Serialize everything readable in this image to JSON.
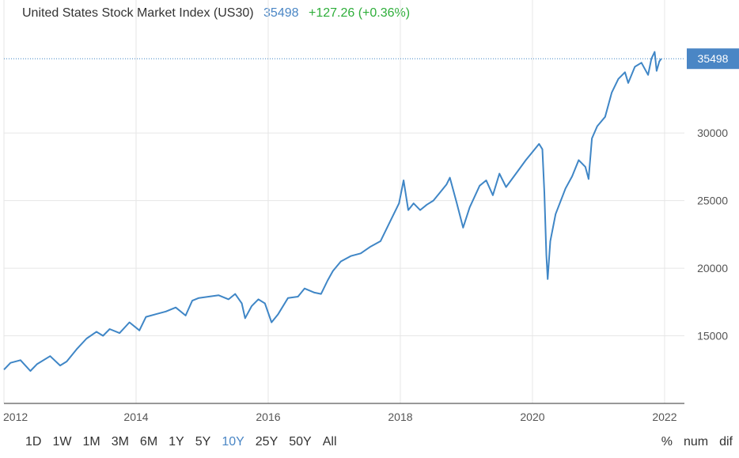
{
  "header": {
    "title": "United States Stock Market Index (US30)",
    "price": "35498",
    "change": "+127.26 (+0.36%)"
  },
  "colors": {
    "line": "#3f86c6",
    "grid": "#e6e6e6",
    "accent": "#4a86c5",
    "positive": "#2eae3a"
  },
  "chart_data": {
    "type": "line",
    "title": "United States Stock Market Index (US30)",
    "xlabel": "",
    "ylabel": "",
    "xlim": [
      2012,
      2022.3
    ],
    "ylim": [
      10000,
      37500
    ],
    "x_ticks": [
      "2012",
      "2014",
      "2016",
      "2018",
      "2020",
      "2022"
    ],
    "y_ticks": [
      "15000",
      "20000",
      "25000",
      "30000"
    ],
    "y_axis_side": "right",
    "grid": true,
    "last_value_label": "35498",
    "series": [
      {
        "points": [
          [
            2012.0,
            12500
          ],
          [
            2012.1,
            13000
          ],
          [
            2012.25,
            13200
          ],
          [
            2012.4,
            12400
          ],
          [
            2012.5,
            12900
          ],
          [
            2012.7,
            13500
          ],
          [
            2012.85,
            12800
          ],
          [
            2012.95,
            13100
          ],
          [
            2013.1,
            14000
          ],
          [
            2013.25,
            14800
          ],
          [
            2013.4,
            15300
          ],
          [
            2013.5,
            15000
          ],
          [
            2013.6,
            15500
          ],
          [
            2013.75,
            15200
          ],
          [
            2013.9,
            16000
          ],
          [
            2014.05,
            15400
          ],
          [
            2014.15,
            16400
          ],
          [
            2014.3,
            16600
          ],
          [
            2014.45,
            16800
          ],
          [
            2014.6,
            17100
          ],
          [
            2014.75,
            16500
          ],
          [
            2014.85,
            17600
          ],
          [
            2014.95,
            17800
          ],
          [
            2015.1,
            17900
          ],
          [
            2015.25,
            18000
          ],
          [
            2015.4,
            17700
          ],
          [
            2015.5,
            18100
          ],
          [
            2015.6,
            17400
          ],
          [
            2015.65,
            16300
          ],
          [
            2015.75,
            17200
          ],
          [
            2015.85,
            17700
          ],
          [
            2015.95,
            17400
          ],
          [
            2016.05,
            16000
          ],
          [
            2016.15,
            16600
          ],
          [
            2016.3,
            17800
          ],
          [
            2016.45,
            17900
          ],
          [
            2016.55,
            18500
          ],
          [
            2016.7,
            18200
          ],
          [
            2016.8,
            18100
          ],
          [
            2016.9,
            19100
          ],
          [
            2016.98,
            19800
          ],
          [
            2017.1,
            20500
          ],
          [
            2017.25,
            20900
          ],
          [
            2017.4,
            21100
          ],
          [
            2017.55,
            21600
          ],
          [
            2017.7,
            22000
          ],
          [
            2017.85,
            23500
          ],
          [
            2017.98,
            24800
          ],
          [
            2018.05,
            26500
          ],
          [
            2018.12,
            24300
          ],
          [
            2018.2,
            24800
          ],
          [
            2018.3,
            24300
          ],
          [
            2018.4,
            24700
          ],
          [
            2018.5,
            25000
          ],
          [
            2018.6,
            25600
          ],
          [
            2018.7,
            26200
          ],
          [
            2018.75,
            26700
          ],
          [
            2018.85,
            24900
          ],
          [
            2018.95,
            23000
          ],
          [
            2019.05,
            24500
          ],
          [
            2019.2,
            26100
          ],
          [
            2019.3,
            26500
          ],
          [
            2019.4,
            25400
          ],
          [
            2019.5,
            27000
          ],
          [
            2019.6,
            26000
          ],
          [
            2019.75,
            27000
          ],
          [
            2019.9,
            28000
          ],
          [
            2020.0,
            28600
          ],
          [
            2020.1,
            29200
          ],
          [
            2020.15,
            28800
          ],
          [
            2020.18,
            25600
          ],
          [
            2020.21,
            21000
          ],
          [
            2020.23,
            19200
          ],
          [
            2020.27,
            22000
          ],
          [
            2020.35,
            24000
          ],
          [
            2020.5,
            25900
          ],
          [
            2020.6,
            26800
          ],
          [
            2020.7,
            28000
          ],
          [
            2020.8,
            27500
          ],
          [
            2020.85,
            26600
          ],
          [
            2020.9,
            29600
          ],
          [
            2020.98,
            30500
          ],
          [
            2021.1,
            31200
          ],
          [
            2021.2,
            33000
          ],
          [
            2021.3,
            34000
          ],
          [
            2021.4,
            34500
          ],
          [
            2021.45,
            33700
          ],
          [
            2021.55,
            34900
          ],
          [
            2021.65,
            35200
          ],
          [
            2021.75,
            34300
          ],
          [
            2021.8,
            35500
          ],
          [
            2021.85,
            36000
          ],
          [
            2021.88,
            34600
          ],
          [
            2021.92,
            35300
          ],
          [
            2021.95,
            35498
          ]
        ]
      }
    ]
  },
  "ranges": [
    "1D",
    "1W",
    "1M",
    "3M",
    "6M",
    "1Y",
    "5Y",
    "10Y",
    "25Y",
    "50Y",
    "All"
  ],
  "active_range": "10Y",
  "modes": [
    "%",
    "num",
    "dif"
  ]
}
